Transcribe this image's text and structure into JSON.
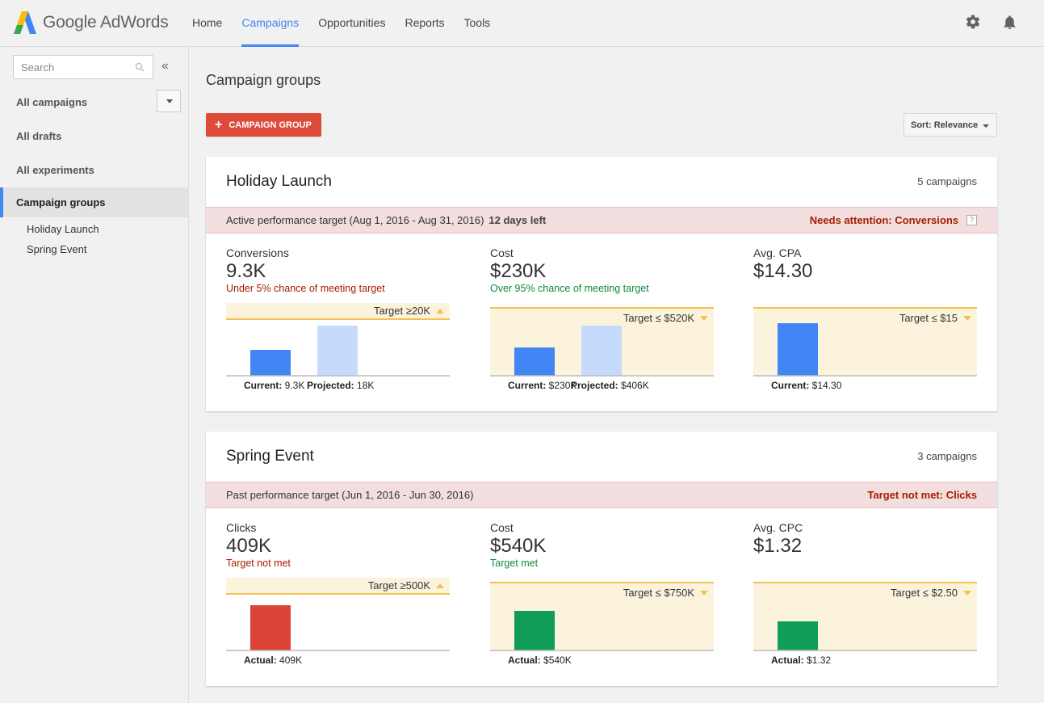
{
  "app": {
    "logo_text": "Google AdWords"
  },
  "nav": {
    "items": [
      {
        "label": "Home",
        "active": false
      },
      {
        "label": "Campaigns",
        "active": true
      },
      {
        "label": "Opportunities",
        "active": false
      },
      {
        "label": "Reports",
        "active": false
      },
      {
        "label": "Tools",
        "active": false
      }
    ],
    "icons": [
      "gear-icon",
      "bell-icon"
    ]
  },
  "sidebar": {
    "search_placeholder": "Search",
    "collapse_label": "«",
    "links": [
      "All campaigns",
      "All drafts",
      "All experiments"
    ],
    "active_link": "Campaign groups",
    "sub_items": [
      "Holiday Launch",
      "Spring Event"
    ]
  },
  "main": {
    "title": "Campaign groups",
    "add_button": "CAMPAIGN GROUP",
    "sort_button": "Sort: Relevance"
  },
  "colors": {
    "accent": "#4285f4",
    "add_button": "#dd4b39",
    "bar_current": "#4285f4",
    "bar_projected": "#c6dafc",
    "bar_red": "#db4437",
    "bar_green": "#0f9d58",
    "target_zone": "#fbf3dc",
    "target_line": "#f4c150",
    "alert_band": "#f2dede"
  },
  "groups": [
    {
      "title": "Holiday Launch",
      "count": "5 campaigns",
      "band_text": "Active performance target (Aug 1, 2016 - Aug 31, 2016)",
      "band_days": "12 days left",
      "band_alert": "Needs attention: Conversions",
      "band_help": "?",
      "metrics": [
        {
          "label": "Conversions",
          "value": "9.3K",
          "status": "Under 5% chance of meeting target",
          "status_type": "bad",
          "target": "Target ≥20K",
          "target_dir": "up",
          "bars": [
            {
              "kind": "current",
              "value": 9.3,
              "label_key": "Current:",
              "label_val": "9.3K"
            },
            {
              "kind": "projected",
              "value": 18,
              "label_key": "Projected:",
              "label_val": "18K"
            }
          ]
        },
        {
          "label": "Cost",
          "value": "$230K",
          "status": "Over 95% chance of meeting target",
          "status_type": "good",
          "target": "Target ≤ $520K",
          "target_dir": "down",
          "bars": [
            {
              "kind": "current",
              "value": 230,
              "label_key": "Current:",
              "label_val": "$230K"
            },
            {
              "kind": "projected",
              "value": 406,
              "label_key": "Projected:",
              "label_val": "$406K"
            }
          ]
        },
        {
          "label": "Avg. CPA",
          "value": "$14.30",
          "status": "",
          "status_type": "none",
          "target": "Target ≤ $15",
          "target_dir": "down",
          "bars": [
            {
              "kind": "current",
              "value": 14.3,
              "label_key": "Current:",
              "label_val": "$14.30"
            }
          ]
        }
      ]
    },
    {
      "title": "Spring Event",
      "count": "3 campaigns",
      "band_text": "Past performance target (Jun 1, 2016 - Jun 30, 2016)",
      "band_days": "",
      "band_alert": "Target not met: Clicks",
      "band_help": "",
      "metrics": [
        {
          "label": "Clicks",
          "value": "409K",
          "status": "Target not met",
          "status_type": "bad",
          "target": "Target ≥500K",
          "target_dir": "up",
          "bars": [
            {
              "kind": "red",
              "value": 409,
              "label_key": "Actual:",
              "label_val": "409K"
            }
          ]
        },
        {
          "label": "Cost",
          "value": "$540K",
          "status": "Target met",
          "status_type": "good",
          "target": "Target ≤ $750K",
          "target_dir": "down",
          "bars": [
            {
              "kind": "green",
              "value": 540,
              "label_key": "Actual:",
              "label_val": "$540K"
            }
          ]
        },
        {
          "label": "Avg. CPC",
          "value": "$1.32",
          "status": "",
          "status_type": "none",
          "target": "Target ≤ $2.50",
          "target_dir": "down",
          "bars": [
            {
              "kind": "green",
              "value": 1.32,
              "label_key": "Actual:",
              "label_val": "$1.32"
            }
          ]
        }
      ]
    }
  ]
}
